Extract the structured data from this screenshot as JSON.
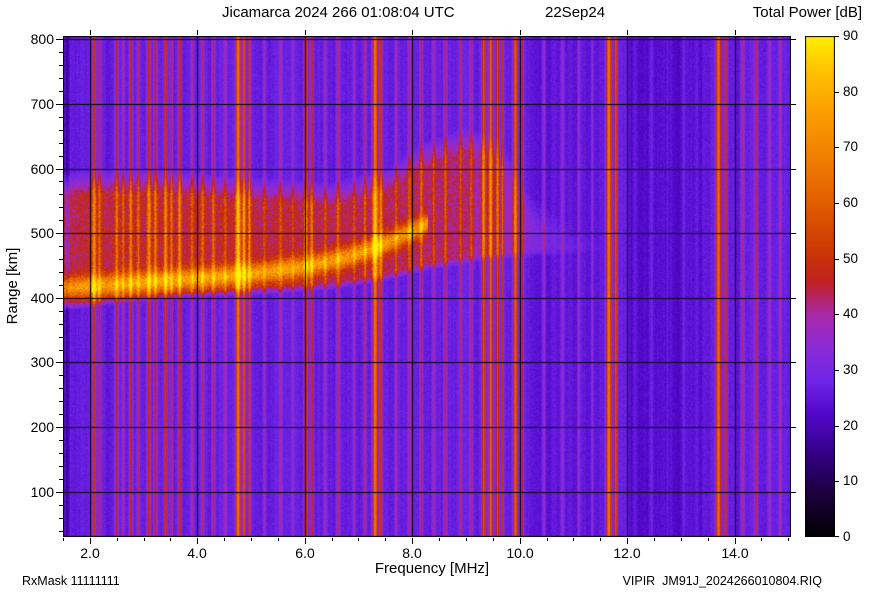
{
  "header": {
    "title": "Jicamarca 2024 266 01:08:04 UTC",
    "date": "22Sep24",
    "colorbar_title": "Total Power [dB]"
  },
  "footer": {
    "rxmask": "RxMask 11111111",
    "file": "VIPIR  JM91J_2024266010804.RIQ"
  },
  "chart_data": {
    "type": "heatmap",
    "title": "Jicamarca 2024 266 01:08:04 UTC 22Sep24",
    "xlabel": "Frequency [MHz]",
    "ylabel": "Range [km]",
    "zlabel": "Total Power [dB]",
    "xlim": [
      1.5,
      15.05
    ],
    "ylim": [
      30,
      805
    ],
    "zlim": [
      0,
      90
    ],
    "grid": true,
    "x_ticks": [
      {
        "value": 2,
        "label": "2.0"
      },
      {
        "value": 4,
        "label": "4.0"
      },
      {
        "value": 6,
        "label": "6.0"
      },
      {
        "value": 8,
        "label": "8.0"
      },
      {
        "value": 10,
        "label": "10.0"
      },
      {
        "value": 12,
        "label": "12.0"
      },
      {
        "value": 14,
        "label": "14.0"
      }
    ],
    "y_ticks": [
      {
        "value": 100,
        "label": "100"
      },
      {
        "value": 200,
        "label": "200"
      },
      {
        "value": 300,
        "label": "300"
      },
      {
        "value": 400,
        "label": "400"
      },
      {
        "value": 500,
        "label": "500"
      },
      {
        "value": 600,
        "label": "600"
      },
      {
        "value": 700,
        "label": "700"
      },
      {
        "value": 800,
        "label": "800"
      }
    ],
    "z_ticks": [
      {
        "value": 0,
        "label": "0"
      },
      {
        "value": 10,
        "label": "10"
      },
      {
        "value": 20,
        "label": "20"
      },
      {
        "value": 30,
        "label": "30"
      },
      {
        "value": 40,
        "label": "40"
      },
      {
        "value": 50,
        "label": "50"
      },
      {
        "value": 60,
        "label": "60"
      },
      {
        "value": 70,
        "label": "70"
      },
      {
        "value": 80,
        "label": "80"
      },
      {
        "value": 90,
        "label": "90"
      }
    ],
    "x_minor_step": 0.5,
    "y_minor_step": 20,
    "colormap_stops": [
      [
        0,
        "#000000"
      ],
      [
        6,
        "#16002e"
      ],
      [
        14,
        "#30007a"
      ],
      [
        22,
        "#5208c8"
      ],
      [
        28,
        "#6f25e6"
      ],
      [
        34,
        "#8a2cd8"
      ],
      [
        40,
        "#a928a8"
      ],
      [
        46,
        "#c1211c"
      ],
      [
        52,
        "#cc3a04"
      ],
      [
        60,
        "#e25e00"
      ],
      [
        68,
        "#f07e00"
      ],
      [
        76,
        "#fb9d00"
      ],
      [
        84,
        "#ffc400"
      ],
      [
        90,
        "#ffef00"
      ]
    ],
    "background_db": 26.5,
    "pixel_noise_db": 3.5,
    "column_noise_db": 2.4,
    "quiet_bands": {
      "format": [
        "f_start_mhz",
        "f_end_mhz",
        "delta_db"
      ],
      "values": [
        [
          1.5,
          1.64,
          -9
        ],
        [
          2.28,
          2.44,
          -2
        ],
        [
          10.2,
          11.55,
          -2
        ],
        [
          12.0,
          13.45,
          -3.5
        ],
        [
          13.95,
          14.1,
          -2
        ]
      ]
    },
    "rfi_stripes": {
      "format": [
        "freq_mhz",
        "peak_db",
        "width_mhz"
      ],
      "values": [
        [
          2.08,
          52,
          0.035
        ],
        [
          2.18,
          46,
          0.025
        ],
        [
          2.5,
          45,
          0.03
        ],
        [
          2.62,
          42,
          0.025
        ],
        [
          2.76,
          48,
          0.03
        ],
        [
          2.9,
          44,
          0.025
        ],
        [
          3.1,
          52,
          0.035
        ],
        [
          3.22,
          47,
          0.03
        ],
        [
          3.41,
          53,
          0.03
        ],
        [
          3.52,
          46,
          0.025
        ],
        [
          3.67,
          51,
          0.03
        ],
        [
          3.9,
          40,
          0.03
        ],
        [
          4.1,
          42,
          0.03
        ],
        [
          4.3,
          44,
          0.03
        ],
        [
          4.52,
          38,
          0.03
        ],
        [
          4.76,
          68,
          0.045
        ],
        [
          4.87,
          58,
          0.03
        ],
        [
          4.97,
          52,
          0.025
        ],
        [
          5.25,
          38,
          0.03
        ],
        [
          5.55,
          40,
          0.03
        ],
        [
          5.78,
          38,
          0.025
        ],
        [
          6.02,
          54,
          0.035
        ],
        [
          6.13,
          50,
          0.03
        ],
        [
          6.38,
          40,
          0.025
        ],
        [
          6.62,
          42,
          0.03
        ],
        [
          6.92,
          40,
          0.025
        ],
        [
          7.12,
          42,
          0.025
        ],
        [
          7.31,
          67,
          0.05
        ],
        [
          7.42,
          54,
          0.03
        ],
        [
          7.7,
          40,
          0.025
        ],
        [
          7.95,
          42,
          0.03
        ],
        [
          8.17,
          45,
          0.03
        ],
        [
          8.4,
          42,
          0.025
        ],
        [
          8.62,
          44,
          0.03
        ],
        [
          8.9,
          42,
          0.025
        ],
        [
          9.1,
          44,
          0.03
        ],
        [
          9.33,
          57,
          0.035
        ],
        [
          9.46,
          62,
          0.04
        ],
        [
          9.59,
          54,
          0.03
        ],
        [
          9.68,
          50,
          0.025
        ],
        [
          9.92,
          60,
          0.04
        ],
        [
          10.05,
          46,
          0.025
        ],
        [
          10.45,
          38,
          0.03
        ],
        [
          10.8,
          36,
          0.03
        ],
        [
          11.1,
          38,
          0.025
        ],
        [
          11.35,
          36,
          0.025
        ],
        [
          11.66,
          66,
          0.045
        ],
        [
          11.79,
          56,
          0.03
        ],
        [
          12.15,
          30,
          0.03
        ],
        [
          12.45,
          32,
          0.03
        ],
        [
          12.75,
          30,
          0.03
        ],
        [
          13.05,
          32,
          0.03
        ],
        [
          13.3,
          31,
          0.03
        ],
        [
          13.7,
          66,
          0.045
        ],
        [
          13.83,
          52,
          0.03
        ],
        [
          14.15,
          42,
          0.03
        ],
        [
          14.4,
          44,
          0.03
        ],
        [
          14.65,
          40,
          0.025
        ],
        [
          14.85,
          42,
          0.03
        ]
      ]
    },
    "echo_band": {
      "format": [
        "freq_mhz",
        "bottom_km",
        "top_km",
        "db"
      ],
      "points": [
        [
          1.5,
          380,
          595,
          45
        ],
        [
          2.5,
          390,
          600,
          46
        ],
        [
          3.5,
          398,
          598,
          46
        ],
        [
          4.5,
          402,
          590,
          45.5
        ],
        [
          5.5,
          406,
          585,
          45
        ],
        [
          6.5,
          412,
          580,
          44.5
        ],
        [
          7.5,
          425,
          600,
          44
        ],
        [
          8.2,
          440,
          640,
          43
        ],
        [
          9.0,
          452,
          665,
          41
        ],
        [
          9.6,
          458,
          650,
          38.5
        ],
        [
          10.2,
          462,
          560,
          34
        ],
        [
          10.8,
          465,
          520,
          30
        ],
        [
          11.5,
          465,
          500,
          27.5
        ]
      ]
    },
    "echo_trace": {
      "format": [
        "freq_mhz",
        "range_km"
      ],
      "points": [
        [
          1.5,
          415
        ],
        [
          2.0,
          418
        ],
        [
          2.5,
          421
        ],
        [
          3.0,
          424
        ],
        [
          3.5,
          427
        ],
        [
          4.0,
          430
        ],
        [
          4.5,
          433
        ],
        [
          5.0,
          437
        ],
        [
          5.5,
          442
        ],
        [
          6.0,
          448
        ],
        [
          6.4,
          455
        ],
        [
          6.8,
          463
        ],
        [
          7.2,
          474
        ],
        [
          7.6,
          488
        ],
        [
          8.0,
          503
        ],
        [
          8.3,
          515
        ]
      ],
      "peak_db": 57,
      "width_km": 11
    }
  }
}
